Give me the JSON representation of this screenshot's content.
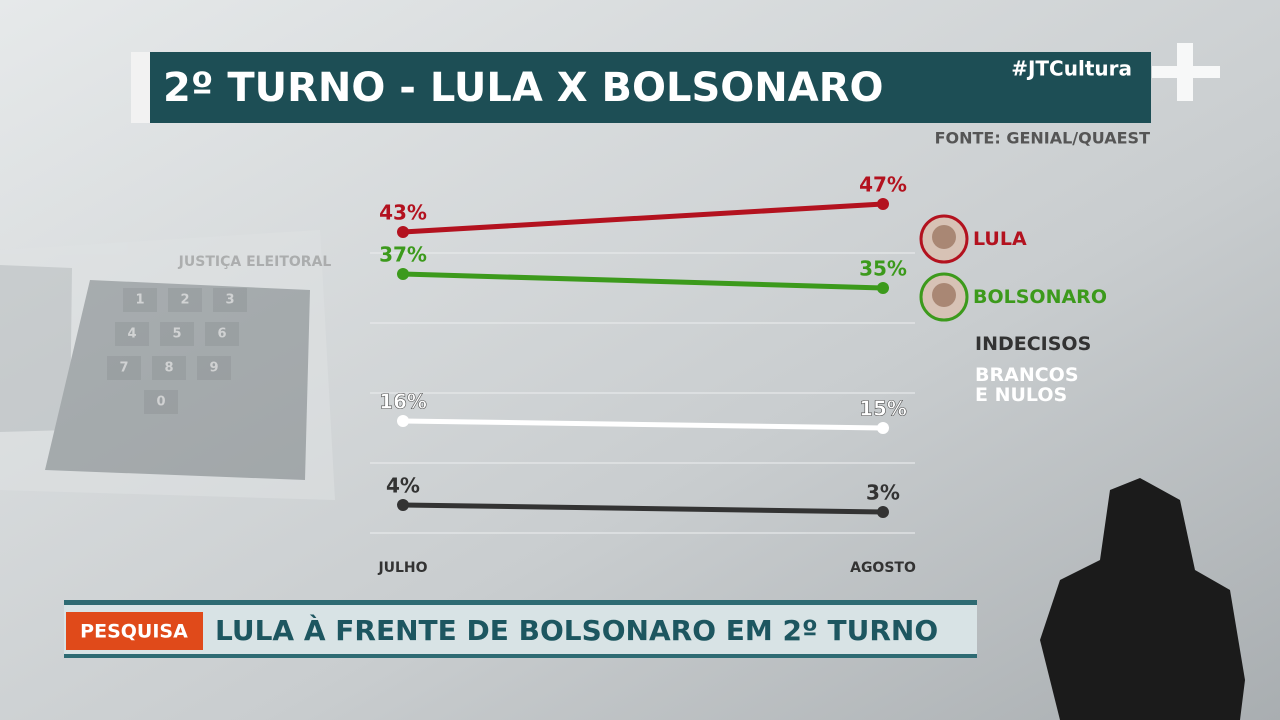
{
  "chart_data": {
    "type": "line",
    "title": "2º TURNO - LULA X BOLSONARO",
    "source": "FONTE: GENIAL/QUAEST",
    "categories": [
      "JULHO",
      "AGOSTO"
    ],
    "series": [
      {
        "name": "LULA",
        "color": "#b3121f",
        "values": [
          43,
          47
        ],
        "value_labels": [
          "43%",
          "47%"
        ]
      },
      {
        "name": "BOLSONARO",
        "color": "#3c9a1c",
        "values": [
          37,
          35
        ],
        "value_labels": [
          "37%",
          "35%"
        ]
      },
      {
        "name": "INDECISOS",
        "color": "#333333",
        "values": [
          4,
          3
        ],
        "value_labels": [
          "4%",
          "3%"
        ]
      },
      {
        "name": "BRANCOS E NULOS",
        "color": "#ffffff",
        "values": [
          16,
          15
        ],
        "value_labels": [
          "16%",
          "15%"
        ]
      }
    ],
    "ylim": [
      0,
      50
    ],
    "yticks": [
      0,
      10,
      20,
      30,
      40
    ],
    "grid": true
  },
  "broadcast": {
    "hashtag": "#JTCultura",
    "banner": {
      "tag": "PESQUISA",
      "headline": "LULA À FRENTE DE BOLSONARO EM 2º TURNO"
    }
  },
  "background": {
    "label": "JUSTIÇA ELEITORAL",
    "keys": [
      "1",
      "2",
      "3",
      "4",
      "5",
      "6",
      "7",
      "8",
      "9",
      "0"
    ]
  }
}
